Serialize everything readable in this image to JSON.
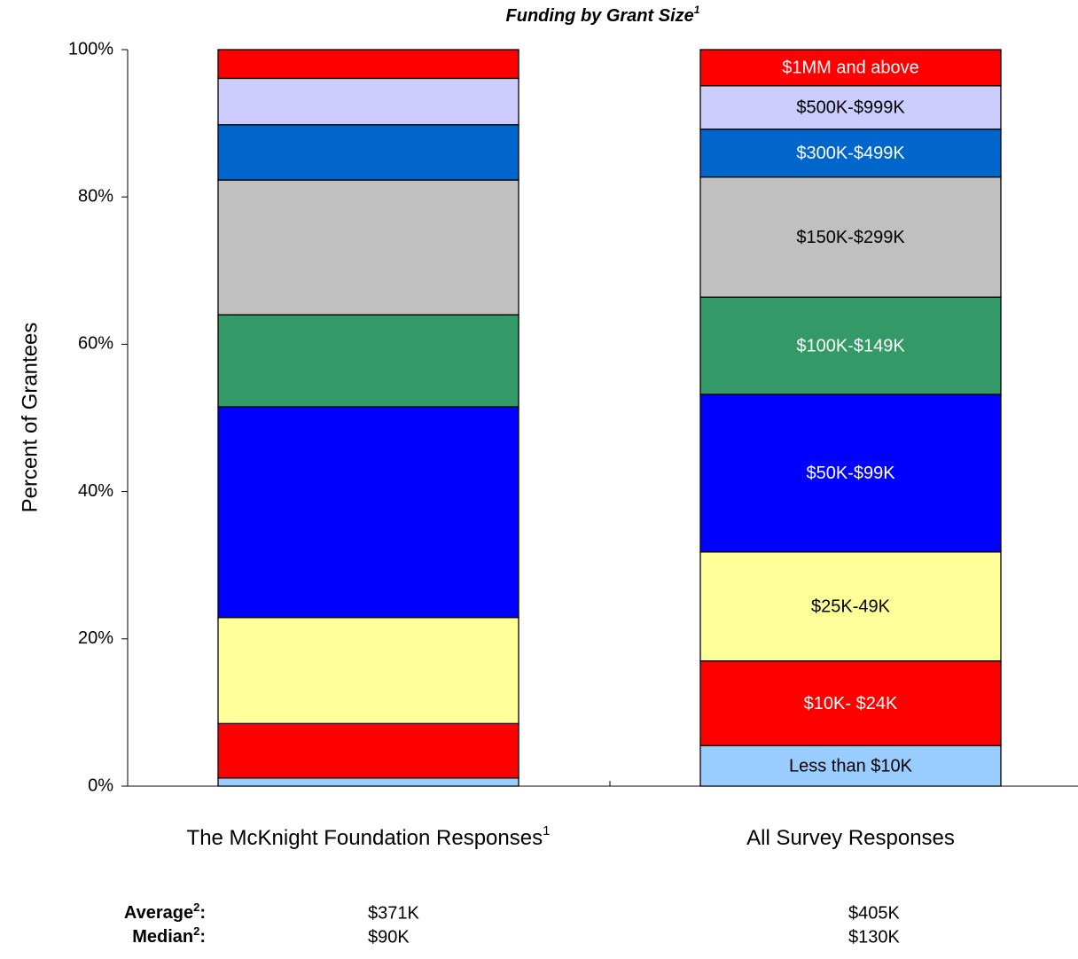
{
  "chart_data": {
    "type": "stacked_bar",
    "title": "Funding by Grant Size",
    "title_superscript": "1",
    "y_label": "Percent of Grantees",
    "categories": [
      "The McKnight Foundation Responses",
      "All Survey Responses"
    ],
    "category_superscripts": [
      "1",
      null
    ],
    "ylim": [
      0,
      100
    ],
    "yticks": [
      {
        "value": 0,
        "label": "0%"
      },
      {
        "value": 20,
        "label": "20%"
      },
      {
        "value": 40,
        "label": "40%"
      },
      {
        "value": 60,
        "label": "60%"
      },
      {
        "value": 80,
        "label": "80%"
      },
      {
        "value": 100,
        "label": "100%"
      }
    ],
    "labeled_category": 1,
    "series": [
      {
        "name": "Less than $10K",
        "color": "#99ccff",
        "label_color": "#000000",
        "values": [
          1.1,
          5.5
        ]
      },
      {
        "name": "$10K- $24K",
        "color": "#ff0000",
        "label_color": "#ffffff",
        "values": [
          7.4,
          11.5
        ]
      },
      {
        "name": "$25K-49K",
        "color": "#ffff99",
        "label_color": "#000000",
        "values": [
          14.4,
          14.8
        ]
      },
      {
        "name": "$50K-$99K",
        "color": "#0000ff",
        "label_color": "#ffffff",
        "values": [
          28.6,
          21.4
        ]
      },
      {
        "name": "$100K-$149K",
        "color": "#339966",
        "label_color": "#ffffff",
        "values": [
          12.5,
          13.2
        ]
      },
      {
        "name": "$150K-$299K",
        "color": "#c0c0c0",
        "label_color": "#000000",
        "values": [
          18.3,
          16.3
        ]
      },
      {
        "name": "$300K-$499K",
        "color": "#0066cc",
        "label_color": "#ffffff",
        "values": [
          7.5,
          6.5
        ]
      },
      {
        "name": "$500K-$999K",
        "color": "#ccccff",
        "label_color": "#000000",
        "values": [
          6.3,
          5.9
        ]
      },
      {
        "name": "$1MM and above",
        "color": "#ff0000",
        "label_color": "#ffffff",
        "values": [
          3.9,
          4.9
        ]
      }
    ],
    "stats": [
      {
        "label": [
          "Average",
          "2",
          ":"
        ],
        "values": [
          "$371K",
          "$405K"
        ]
      },
      {
        "label": [
          "Median",
          "2",
          ":"
        ],
        "values": [
          "$90K",
          "$130K"
        ]
      }
    ]
  }
}
